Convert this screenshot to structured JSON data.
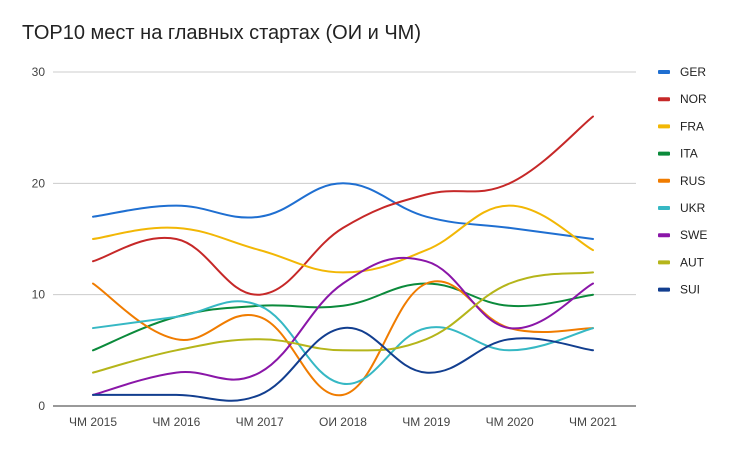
{
  "chart_data": {
    "type": "line",
    "title": "TOP10 мест на главных стартах (ОИ и ЧМ)",
    "xlabel": "",
    "ylabel": "",
    "categories": [
      "ЧМ 2015",
      "ЧМ 2016",
      "ЧМ 2017",
      "ОИ 2018",
      "ЧМ 2019",
      "ЧМ 2020",
      "ЧМ 2021"
    ],
    "ylim": [
      0,
      30
    ],
    "yticks": [
      0,
      10,
      20,
      30
    ],
    "grid": true,
    "legend_position": "right",
    "smooth": true,
    "series": [
      {
        "name": "GER",
        "color": "#1f6fd1",
        "values": [
          17,
          18,
          17,
          20,
          17,
          16,
          15
        ]
      },
      {
        "name": "NOR",
        "color": "#c62828",
        "values": [
          13,
          15,
          10,
          16,
          19,
          20,
          26
        ]
      },
      {
        "name": "FRA",
        "color": "#f2b705",
        "values": [
          15,
          16,
          14,
          12,
          14,
          18,
          14
        ]
      },
      {
        "name": "ITA",
        "color": "#0b8a3b",
        "values": [
          5,
          8,
          9,
          9,
          11,
          9,
          10
        ]
      },
      {
        "name": "RUS",
        "color": "#f07c00",
        "values": [
          11,
          6,
          8,
          1,
          11,
          7,
          7
        ]
      },
      {
        "name": "UKR",
        "color": "#36b8c4",
        "values": [
          7,
          8,
          9,
          2,
          7,
          5,
          7
        ]
      },
      {
        "name": "SWE",
        "color": "#8a16a8",
        "values": [
          1,
          3,
          3,
          11,
          13,
          7,
          11
        ]
      },
      {
        "name": "AUT",
        "color": "#b5b51a",
        "values": [
          3,
          5,
          6,
          5,
          6,
          11,
          12
        ]
      },
      {
        "name": "SUI",
        "color": "#123e8f",
        "values": [
          1,
          1,
          1,
          7,
          3,
          6,
          5
        ]
      }
    ]
  }
}
